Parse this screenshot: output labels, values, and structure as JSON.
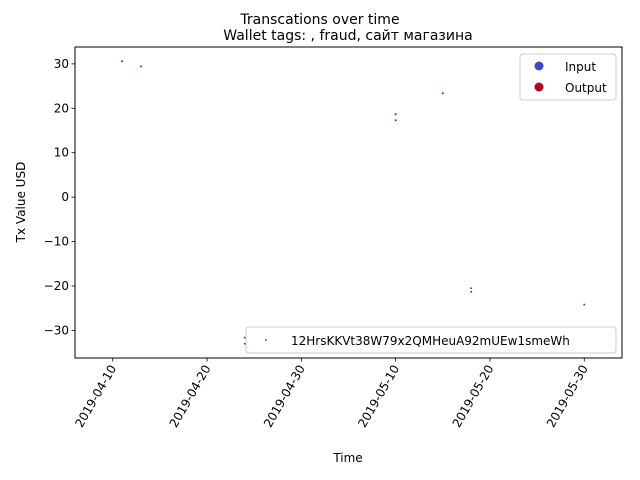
{
  "figure": {
    "suptitle": "Transcations over time"
  },
  "chart_data": {
    "type": "scatter",
    "title": "Wallet tags: , fraud, сайт магазина",
    "xlabel": "Time",
    "ylabel": "Tx Value USD",
    "xlim": [
      "2019-04-06",
      "2019-06-03"
    ],
    "ylim": [
      -36.2,
      33.8
    ],
    "x_ticks": [
      "2019-04-10",
      "2019-04-20",
      "2019-04-30",
      "2019-05-10",
      "2019-05-20",
      "2019-05-30"
    ],
    "y_ticks": [
      30,
      20,
      10,
      0,
      -10,
      -20,
      -30
    ],
    "y_tick_labels": [
      "30",
      "20",
      "10",
      "0",
      "−10",
      "−20",
      "−30"
    ],
    "grid": false,
    "series": [
      {
        "name": "Input",
        "color": "#3b4cc0",
        "points": [
          {
            "x": "2019-04-24",
            "y": -31.6
          },
          {
            "x": "2019-04-24",
            "y": -33.0
          },
          {
            "x": "2019-05-18",
            "y": -20.5
          },
          {
            "x": "2019-05-18",
            "y": -21.3
          },
          {
            "x": "2019-05-30",
            "y": -24.2
          }
        ]
      },
      {
        "name": "Output",
        "color": "#b40426",
        "points": [
          {
            "x": "2019-04-11",
            "y": 30.6
          },
          {
            "x": "2019-04-13",
            "y": 29.4
          },
          {
            "x": "2019-05-10",
            "y": 17.3
          },
          {
            "x": "2019-05-10",
            "y": 18.7
          },
          {
            "x": "2019-05-15",
            "y": 23.4
          }
        ]
      }
    ],
    "legends": [
      {
        "placement": "upper-right",
        "entries": [
          {
            "label": "Input",
            "color": "#3b4cc0"
          },
          {
            "label": "Output",
            "color": "#b40426"
          }
        ]
      },
      {
        "placement": "lower-right",
        "entries": [
          {
            "label": "12HrsKKVt38W79x2QMHeuA92mUEw1smeWh",
            "color": "#1f77b4"
          }
        ]
      }
    ]
  }
}
